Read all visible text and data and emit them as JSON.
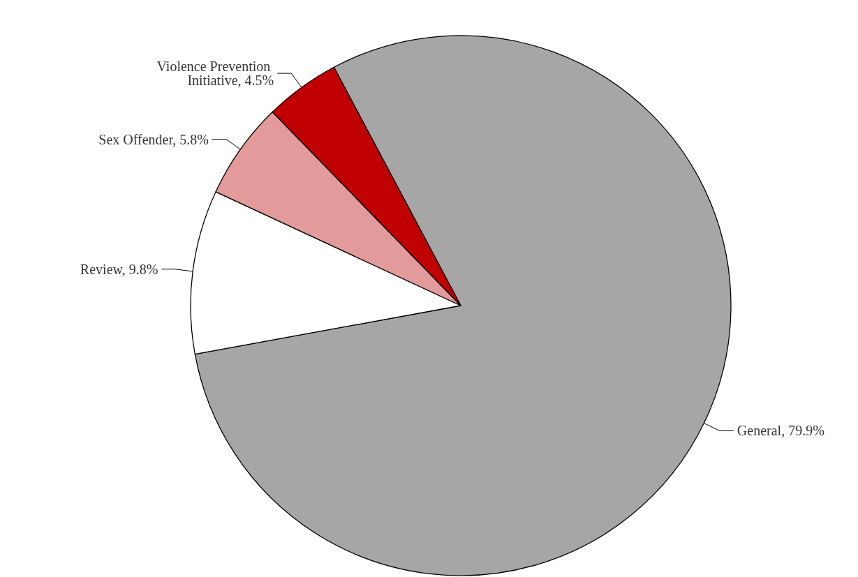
{
  "chart_data": {
    "type": "pie",
    "categories": [
      "General",
      "Review",
      "Sex Offender",
      "Violence Prevention Initiative"
    ],
    "values": [
      79.9,
      9.8,
      5.8,
      4.5
    ],
    "colors": [
      "#a6a6a6",
      "#ffffff",
      "#e39a9a",
      "#c00000"
    ],
    "value_labels": [
      "79.9%",
      "9.8%",
      "5.8%",
      "4.5%"
    ]
  }
}
